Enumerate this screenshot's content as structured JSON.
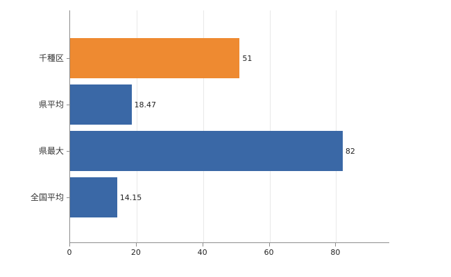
{
  "chart_data": {
    "type": "bar",
    "orientation": "horizontal",
    "title": "",
    "xlabel": "",
    "ylabel": "",
    "categories": [
      "千種区",
      "県平均",
      "県最大",
      "全国平均"
    ],
    "values": [
      51,
      18.47,
      82,
      14.15
    ],
    "value_labels": [
      "51",
      "18.47",
      "82",
      "14.15"
    ],
    "bar_colors": [
      "#ee8a31",
      "#3a68a6",
      "#3a68a6",
      "#3a68a6"
    ],
    "xlim": [
      0,
      96
    ],
    "xticks": [
      0,
      20,
      40,
      60,
      80
    ],
    "grid": true,
    "legend": "none",
    "axis_color": "#8c8c8c",
    "gridline_color": "#e8e8e8"
  }
}
